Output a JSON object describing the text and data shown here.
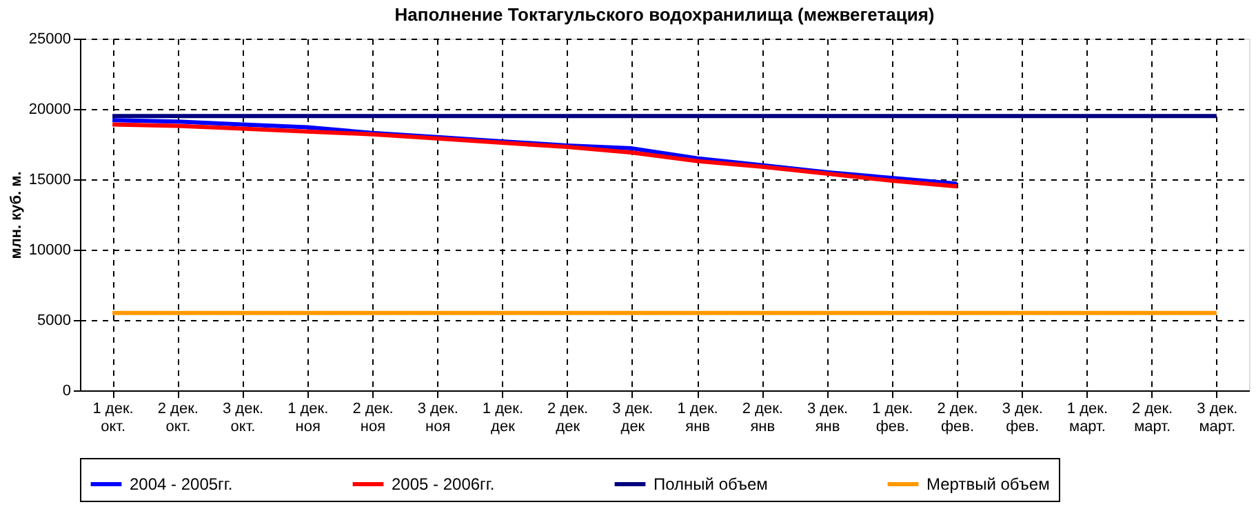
{
  "chart_data": {
    "type": "line",
    "title": "Наполнение Токтагульского водохранилища (межвегетация)",
    "ylabel": "млн. куб. м.",
    "categories": [
      "1 дек.\nокт.",
      "2 дек.\nокт.",
      "3 дек.\nокт.",
      "1 дек.\nноя",
      "2 дек.\nноя",
      "3 дек.\nноя",
      "1 дек.\nдек",
      "2 дек.\nдек",
      "3 дек.\nдек",
      "1 дек.\nянв",
      "2 дек.\nянв",
      "3 дек.\nянв",
      "1 дек.\nфев.",
      "2 дек.\nфев.",
      "3 дек.\nфев.",
      "1 дек.\nмарт.",
      "2 дек.\nмарт.",
      "3 дек.\nмарт."
    ],
    "series": [
      {
        "name": "2004 - 2005гг.",
        "color": "#0000ff",
        "values": [
          19200,
          19100,
          18900,
          18700,
          18300,
          18000,
          17700,
          17400,
          17200,
          16500,
          16000,
          15500,
          15100,
          14700,
          null,
          null,
          null,
          null
        ]
      },
      {
        "name": "2005 - 2006гг.",
        "color": "#ff0000",
        "values": [
          18900,
          18800,
          18600,
          18400,
          18200,
          17900,
          17600,
          17300,
          16900,
          16300,
          15900,
          15400,
          14900,
          14500,
          null,
          null,
          null,
          null
        ]
      },
      {
        "name": "Полный объем",
        "color": "#000080",
        "values": [
          19500,
          19500,
          19500,
          19500,
          19500,
          19500,
          19500,
          19500,
          19500,
          19500,
          19500,
          19500,
          19500,
          19500,
          19500,
          19500,
          19500,
          19500
        ]
      },
      {
        "name": "Мертвый объем",
        "color": "#ff9900",
        "values": [
          5500,
          5500,
          5500,
          5500,
          5500,
          5500,
          5500,
          5500,
          5500,
          5500,
          5500,
          5500,
          5500,
          5500,
          5500,
          5500,
          5500,
          5500
        ]
      }
    ],
    "ylim": [
      0,
      25000
    ],
    "yticks": [
      0,
      5000,
      10000,
      15000,
      20000,
      25000
    ],
    "grid": true,
    "legend": "bottom",
    "marker": "none",
    "line_style": "solid"
  }
}
